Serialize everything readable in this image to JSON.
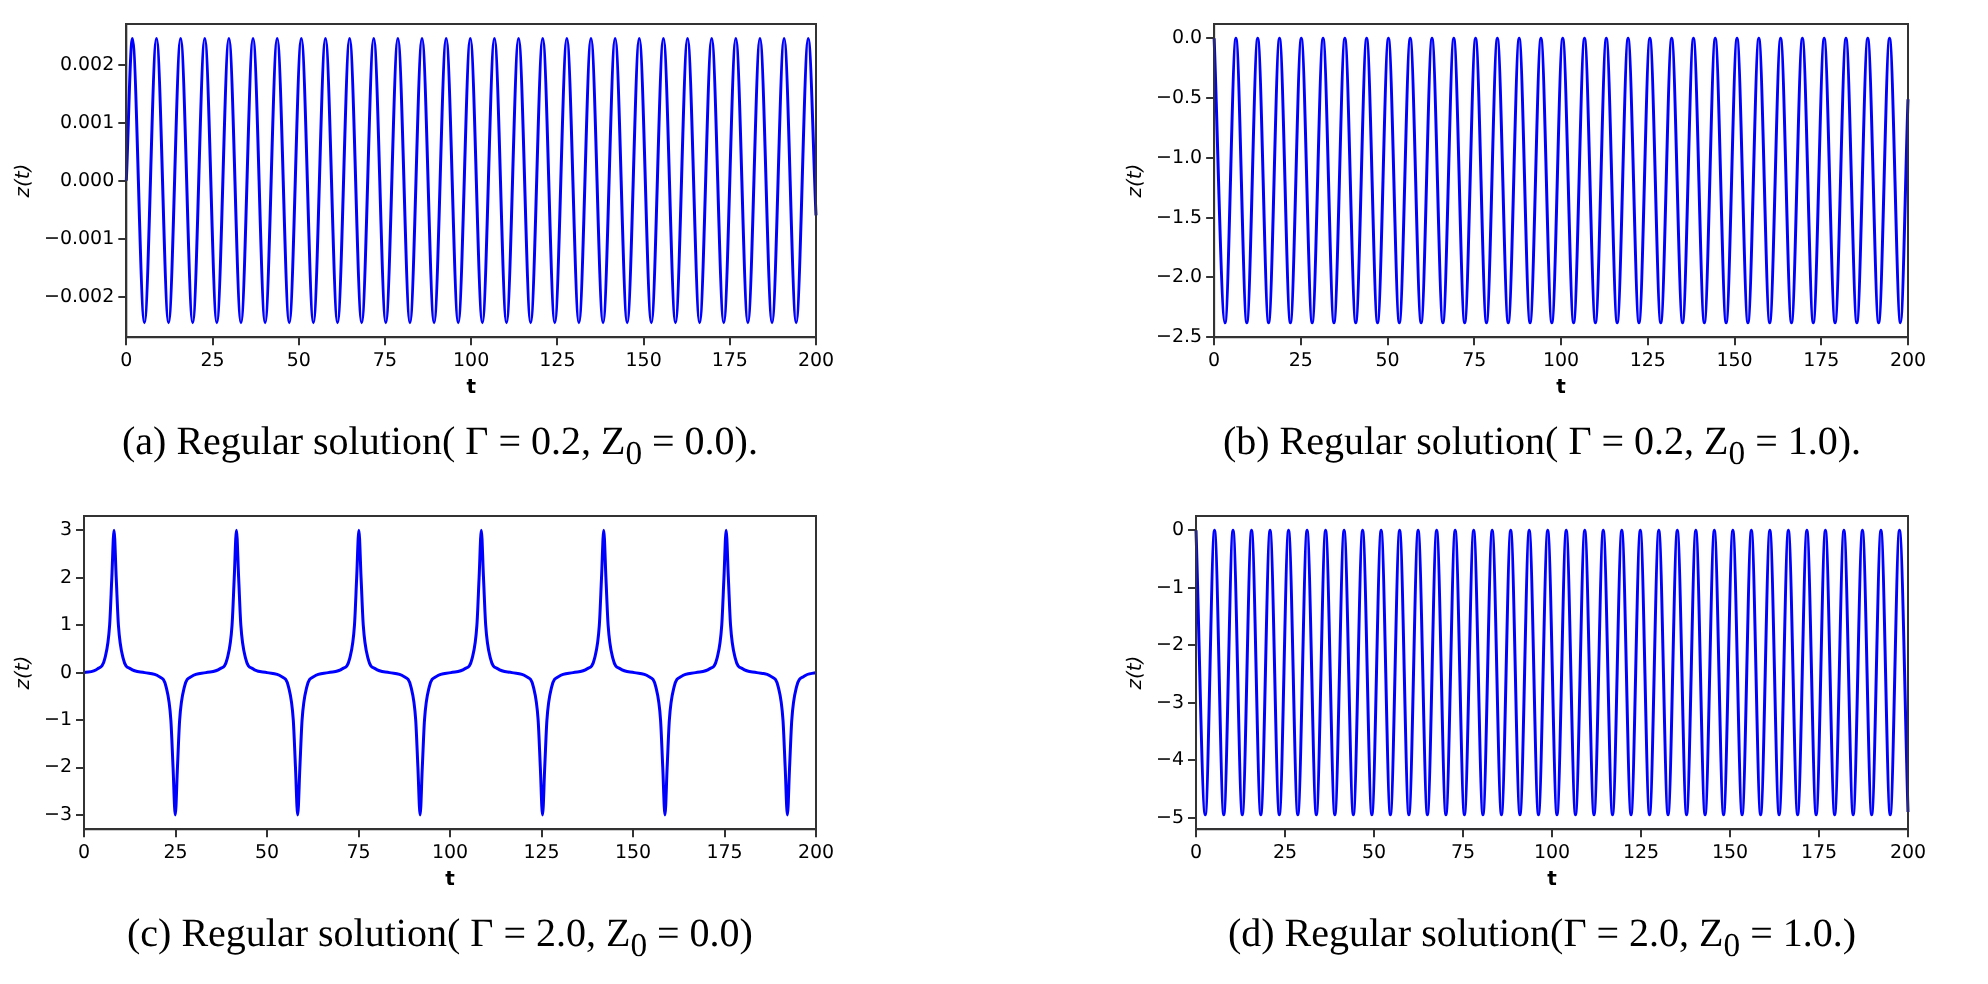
{
  "chart_data": [
    {
      "type": "line",
      "title": "(a) Regular solution( Γ = 0.2, Z$_{0}$ = 0.0).",
      "xlabel": "t",
      "ylabel": "z(t)",
      "marker": "none",
      "xlim": [
        0,
        200
      ],
      "ylim": [
        -0.0027,
        0.0027
      ],
      "xticks": [
        0,
        25,
        50,
        75,
        100,
        125,
        150,
        175,
        200
      ],
      "yticks": [
        {
          "value": -0.002,
          "label": "−0.002"
        },
        {
          "value": -0.001,
          "label": "−0.001"
        },
        {
          "value": 0,
          "label": "0.000"
        },
        {
          "value": 0.001,
          "label": "0.001"
        },
        {
          "value": 0.002,
          "label": "0.002"
        }
      ],
      "series": [
        {
          "color": "#0000ff",
          "x": [
            0,
            1.75,
            5.25,
            8.75,
            12.25,
            15.75,
            19.25,
            22.75,
            26.25,
            29.75,
            33.25,
            36.75,
            40.25,
            43.75,
            47.25,
            50.75,
            54.25,
            57.75,
            61.25,
            64.75,
            68.25,
            71.75,
            75.25,
            78.75,
            82.25,
            85.75,
            89.25,
            92.75,
            96.25,
            99.75,
            103.25,
            106.75,
            110.25,
            113.75,
            117.25,
            120.75,
            124.25,
            127.75,
            131.25,
            134.75,
            138.25,
            141.75,
            145.25,
            148.75,
            152.25,
            155.75,
            159.25,
            162.75,
            166.25,
            169.75,
            173.25,
            176.75,
            180.25,
            183.75,
            187.25,
            190.75,
            194.25,
            197.75,
            200
          ],
          "values": [
            0,
            0.00245,
            -0.00245,
            0.00245,
            -0.00245,
            0.00245,
            -0.00245,
            0.00245,
            -0.00245,
            0.00245,
            -0.00245,
            0.00245,
            -0.00245,
            0.00245,
            -0.00245,
            0.00245,
            -0.00245,
            0.00245,
            -0.00245,
            0.00245,
            -0.00245,
            0.00245,
            -0.00245,
            0.00245,
            -0.00245,
            0.00245,
            -0.00245,
            0.00245,
            -0.00245,
            0.00245,
            -0.00245,
            0.00245,
            -0.00245,
            0.00245,
            -0.00245,
            0.00245,
            -0.00245,
            0.00245,
            -0.00245,
            0.00245,
            -0.00245,
            0.00245,
            -0.00245,
            0.00245,
            -0.00245,
            0.00245,
            -0.00245,
            0.00245,
            -0.00245,
            0.00245,
            -0.00245,
            0.00245,
            -0.00245,
            0.00245,
            -0.00245,
            0.00245,
            -0.00245,
            0.00245,
            -0.0006
          ]
        }
      ]
    },
    {
      "type": "line",
      "title": "(b) Regular solution( Γ = 0.2, Z$_{0}$ = 1.0).",
      "xlabel": "t",
      "ylabel": "z(t)",
      "marker": "none",
      "xlim": [
        0,
        200
      ],
      "ylim": [
        -2.5,
        0.12
      ],
      "xticks": [
        0,
        25,
        50,
        75,
        100,
        125,
        150,
        175,
        200
      ],
      "yticks": [
        {
          "value": -2.5,
          "label": "−2.5"
        },
        {
          "value": -2,
          "label": "−2.0"
        },
        {
          "value": -1.5,
          "label": "−1.5"
        },
        {
          "value": -1,
          "label": "−1.0"
        },
        {
          "value": -0.5,
          "label": "−0.5"
        },
        {
          "value": 0,
          "label": "0.0"
        }
      ],
      "series": [
        {
          "color": "#0000ff",
          "x": [
            0,
            3.14,
            6.28,
            9.42,
            12.56,
            15.7,
            18.84,
            21.98,
            25.12,
            28.26,
            31.4,
            34.54,
            37.68,
            40.82,
            43.96,
            47.1,
            50.24,
            53.38,
            56.52,
            59.66,
            62.8,
            65.94,
            69.08,
            72.22,
            75.36,
            78.5,
            81.64,
            84.78,
            87.92,
            91.06,
            94.2,
            97.34,
            100.48,
            103.62,
            106.76,
            109.9,
            113.04,
            116.18,
            119.32,
            122.46,
            125.6,
            128.74,
            131.88,
            135.02,
            138.16,
            141.3,
            144.44,
            147.58,
            150.72,
            153.86,
            157,
            160.14,
            163.28,
            166.42,
            169.56,
            172.7,
            175.84,
            178.98,
            182.12,
            185.26,
            188.4,
            191.54,
            194.68,
            197.82,
            200
          ],
          "values": [
            0,
            -2.38,
            0,
            -2.38,
            0,
            -2.38,
            0,
            -2.38,
            0,
            -2.38,
            0,
            -2.38,
            0,
            -2.38,
            0,
            -2.38,
            0,
            -2.38,
            0,
            -2.38,
            0,
            -2.38,
            0,
            -2.38,
            0,
            -2.38,
            0,
            -2.38,
            0,
            -2.38,
            0,
            -2.38,
            0,
            -2.38,
            0,
            -2.38,
            0,
            -2.38,
            0,
            -2.38,
            0,
            -2.38,
            0,
            -2.38,
            0,
            -2.38,
            0,
            -2.38,
            0,
            -2.38,
            0,
            -2.38,
            0,
            -2.38,
            0,
            -2.38,
            0,
            -2.38,
            0,
            -2.38,
            0,
            -2.38,
            0,
            -2.38,
            -0.51
          ]
        }
      ]
    },
    {
      "type": "line",
      "title": "(c) Regular solution( Γ = 2.0, Z$_{0}$ = 0.0)",
      "xlabel": "t",
      "ylabel": "z(t)",
      "marker": "none",
      "xlim": [
        0,
        200
      ],
      "ylim": [
        -3.3,
        3.3
      ],
      "xticks": [
        0,
        25,
        50,
        75,
        100,
        125,
        150,
        175,
        200
      ],
      "yticks": [
        {
          "value": -3,
          "label": "−3"
        },
        {
          "value": -2,
          "label": "−2"
        },
        {
          "value": -1,
          "label": "−1"
        },
        0,
        1,
        2,
        3
      ],
      "series": [
        {
          "color": "#0000ff",
          "x": [
            0,
            3.7,
            5.7,
            7,
            7.6,
            8.2,
            8.8,
            9.4,
            10.7,
            12.7,
            16.56,
            20.43,
            22.43,
            23.73,
            24.33,
            24.93,
            25.53,
            26.13,
            27.43,
            29.43,
            33.29,
            37.15,
            39.15,
            40.45,
            41.05,
            41.65,
            42.25,
            42.85,
            44.15,
            46.15,
            50.02,
            53.88,
            55.88,
            57.18,
            57.78,
            58.38,
            58.98,
            59.58,
            60.88,
            62.88,
            66.74,
            70.6,
            72.6,
            73.9,
            74.5,
            75.1,
            75.7,
            76.3,
            77.6,
            79.6,
            83.47,
            87.33,
            89.33,
            90.63,
            91.23,
            91.83,
            92.43,
            93.03,
            94.33,
            96.33,
            100.2,
            104.05,
            106.05,
            107.35,
            107.95,
            108.55,
            109.15,
            109.75,
            111.05,
            113.05,
            116.92,
            120.78,
            122.78,
            124.08,
            124.68,
            125.28,
            125.88,
            126.48,
            127.78,
            129.78,
            133.64,
            137.5,
            139.5,
            140.8,
            141.4,
            142,
            142.6,
            143.2,
            144.5,
            146.5,
            150.37,
            154.23,
            156.23,
            157.53,
            158.13,
            158.73,
            159.33,
            159.93,
            161.23,
            163.23,
            167.09,
            170.95,
            172.95,
            174.25,
            174.85,
            175.45,
            176.05,
            176.65,
            177.95,
            179.95,
            183.82,
            187.68,
            189.68,
            190.98,
            191.58,
            192.18,
            192.78,
            193.38,
            194.68,
            196.68,
            200
          ],
          "values": [
            0,
            0.08,
            0.3,
            1,
            2,
            3,
            2,
            1,
            0.3,
            0.08,
            0,
            -0.08,
            -0.3,
            -1,
            -2,
            -3,
            -2,
            -1,
            -0.3,
            -0.08,
            0,
            0.08,
            0.3,
            1,
            2,
            3,
            2,
            1,
            0.3,
            0.08,
            0,
            -0.08,
            -0.3,
            -1,
            -2,
            -3,
            -2,
            -1,
            -0.3,
            -0.08,
            0,
            0.08,
            0.3,
            1,
            2,
            3,
            2,
            1,
            0.3,
            0.08,
            0,
            -0.08,
            -0.3,
            -1,
            -2,
            -3,
            -2,
            -1,
            -0.3,
            -0.08,
            0,
            0.08,
            0.3,
            1,
            2,
            3,
            2,
            1,
            0.3,
            0.08,
            0,
            -0.08,
            -0.3,
            -1,
            -2,
            -3,
            -2,
            -1,
            -0.3,
            -0.08,
            0,
            0.08,
            0.3,
            1,
            2,
            3,
            2,
            1,
            0.3,
            0.08,
            0,
            -0.08,
            -0.3,
            -1,
            -2,
            -3,
            -2,
            -1,
            -0.3,
            -0.08,
            0,
            0.08,
            0.3,
            1,
            2,
            3,
            2,
            1,
            0.3,
            0.08,
            0,
            -0.08,
            -0.3,
            -1,
            -2,
            -3,
            -2,
            -1,
            -0.3,
            -0.08,
            0
          ]
        }
      ]
    },
    {
      "type": "line",
      "title": "(d) Regular solution(Γ = 2.0, Z$_{0}$ = 1.0.)",
      "xlabel": "t",
      "ylabel": "z(t)",
      "marker": "none",
      "xlim": [
        0,
        200
      ],
      "ylim": [
        -5.2,
        0.25
      ],
      "xticks": [
        0,
        25,
        50,
        75,
        100,
        125,
        150,
        175,
        200
      ],
      "yticks": [
        {
          "value": -5,
          "label": "−5"
        },
        {
          "value": -4,
          "label": "−4"
        },
        {
          "value": -3,
          "label": "−3"
        },
        {
          "value": -2,
          "label": "−2"
        },
        {
          "value": -1,
          "label": "−1"
        },
        0
      ],
      "series": [
        {
          "color": "#0000ff",
          "x": [
            0,
            2.6,
            5.2,
            7.8,
            10.4,
            13,
            15.6,
            18.2,
            20.8,
            23.4,
            26,
            28.6,
            31.2,
            33.8,
            36.4,
            39,
            41.6,
            44.2,
            46.8,
            49.4,
            52,
            54.6,
            57.2,
            59.8,
            62.4,
            65,
            67.6,
            70.2,
            72.8,
            75.4,
            78,
            80.6,
            83.2,
            85.8,
            88.4,
            91,
            93.6,
            96.2,
            98.8,
            101.4,
            104,
            106.6,
            109.2,
            111.8,
            114.4,
            117,
            119.6,
            122.2,
            124.8,
            127.4,
            130,
            132.6,
            135.2,
            137.8,
            140.4,
            143,
            145.6,
            148.2,
            150.8,
            153.4,
            156,
            158.6,
            161.2,
            163.8,
            166.4,
            169,
            171.6,
            174.2,
            176.8,
            179.4,
            182,
            184.6,
            187.2,
            189.8,
            192.4,
            195,
            197.6,
            200
          ],
          "values": [
            0,
            -4.95,
            0,
            -4.95,
            0,
            -4.95,
            0,
            -4.95,
            0,
            -4.95,
            0,
            -4.95,
            0,
            -4.95,
            0,
            -4.95,
            0,
            -4.95,
            0,
            -4.95,
            0,
            -4.95,
            0,
            -4.95,
            0,
            -4.95,
            0,
            -4.95,
            0,
            -4.95,
            0,
            -4.95,
            0,
            -4.95,
            0,
            -4.95,
            0,
            -4.95,
            0,
            -4.95,
            0,
            -4.95,
            0,
            -4.95,
            0,
            -4.95,
            0,
            -4.95,
            0,
            -4.95,
            0,
            -4.95,
            0,
            -4.95,
            0,
            -4.95,
            0,
            -4.95,
            0,
            -4.95,
            0,
            -4.95,
            0,
            -4.95,
            0,
            -4.95,
            0,
            -4.95,
            0,
            -4.95,
            0,
            -4.95,
            0,
            -4.95,
            0,
            -4.95,
            0,
            -4.9
          ]
        }
      ]
    }
  ]
}
